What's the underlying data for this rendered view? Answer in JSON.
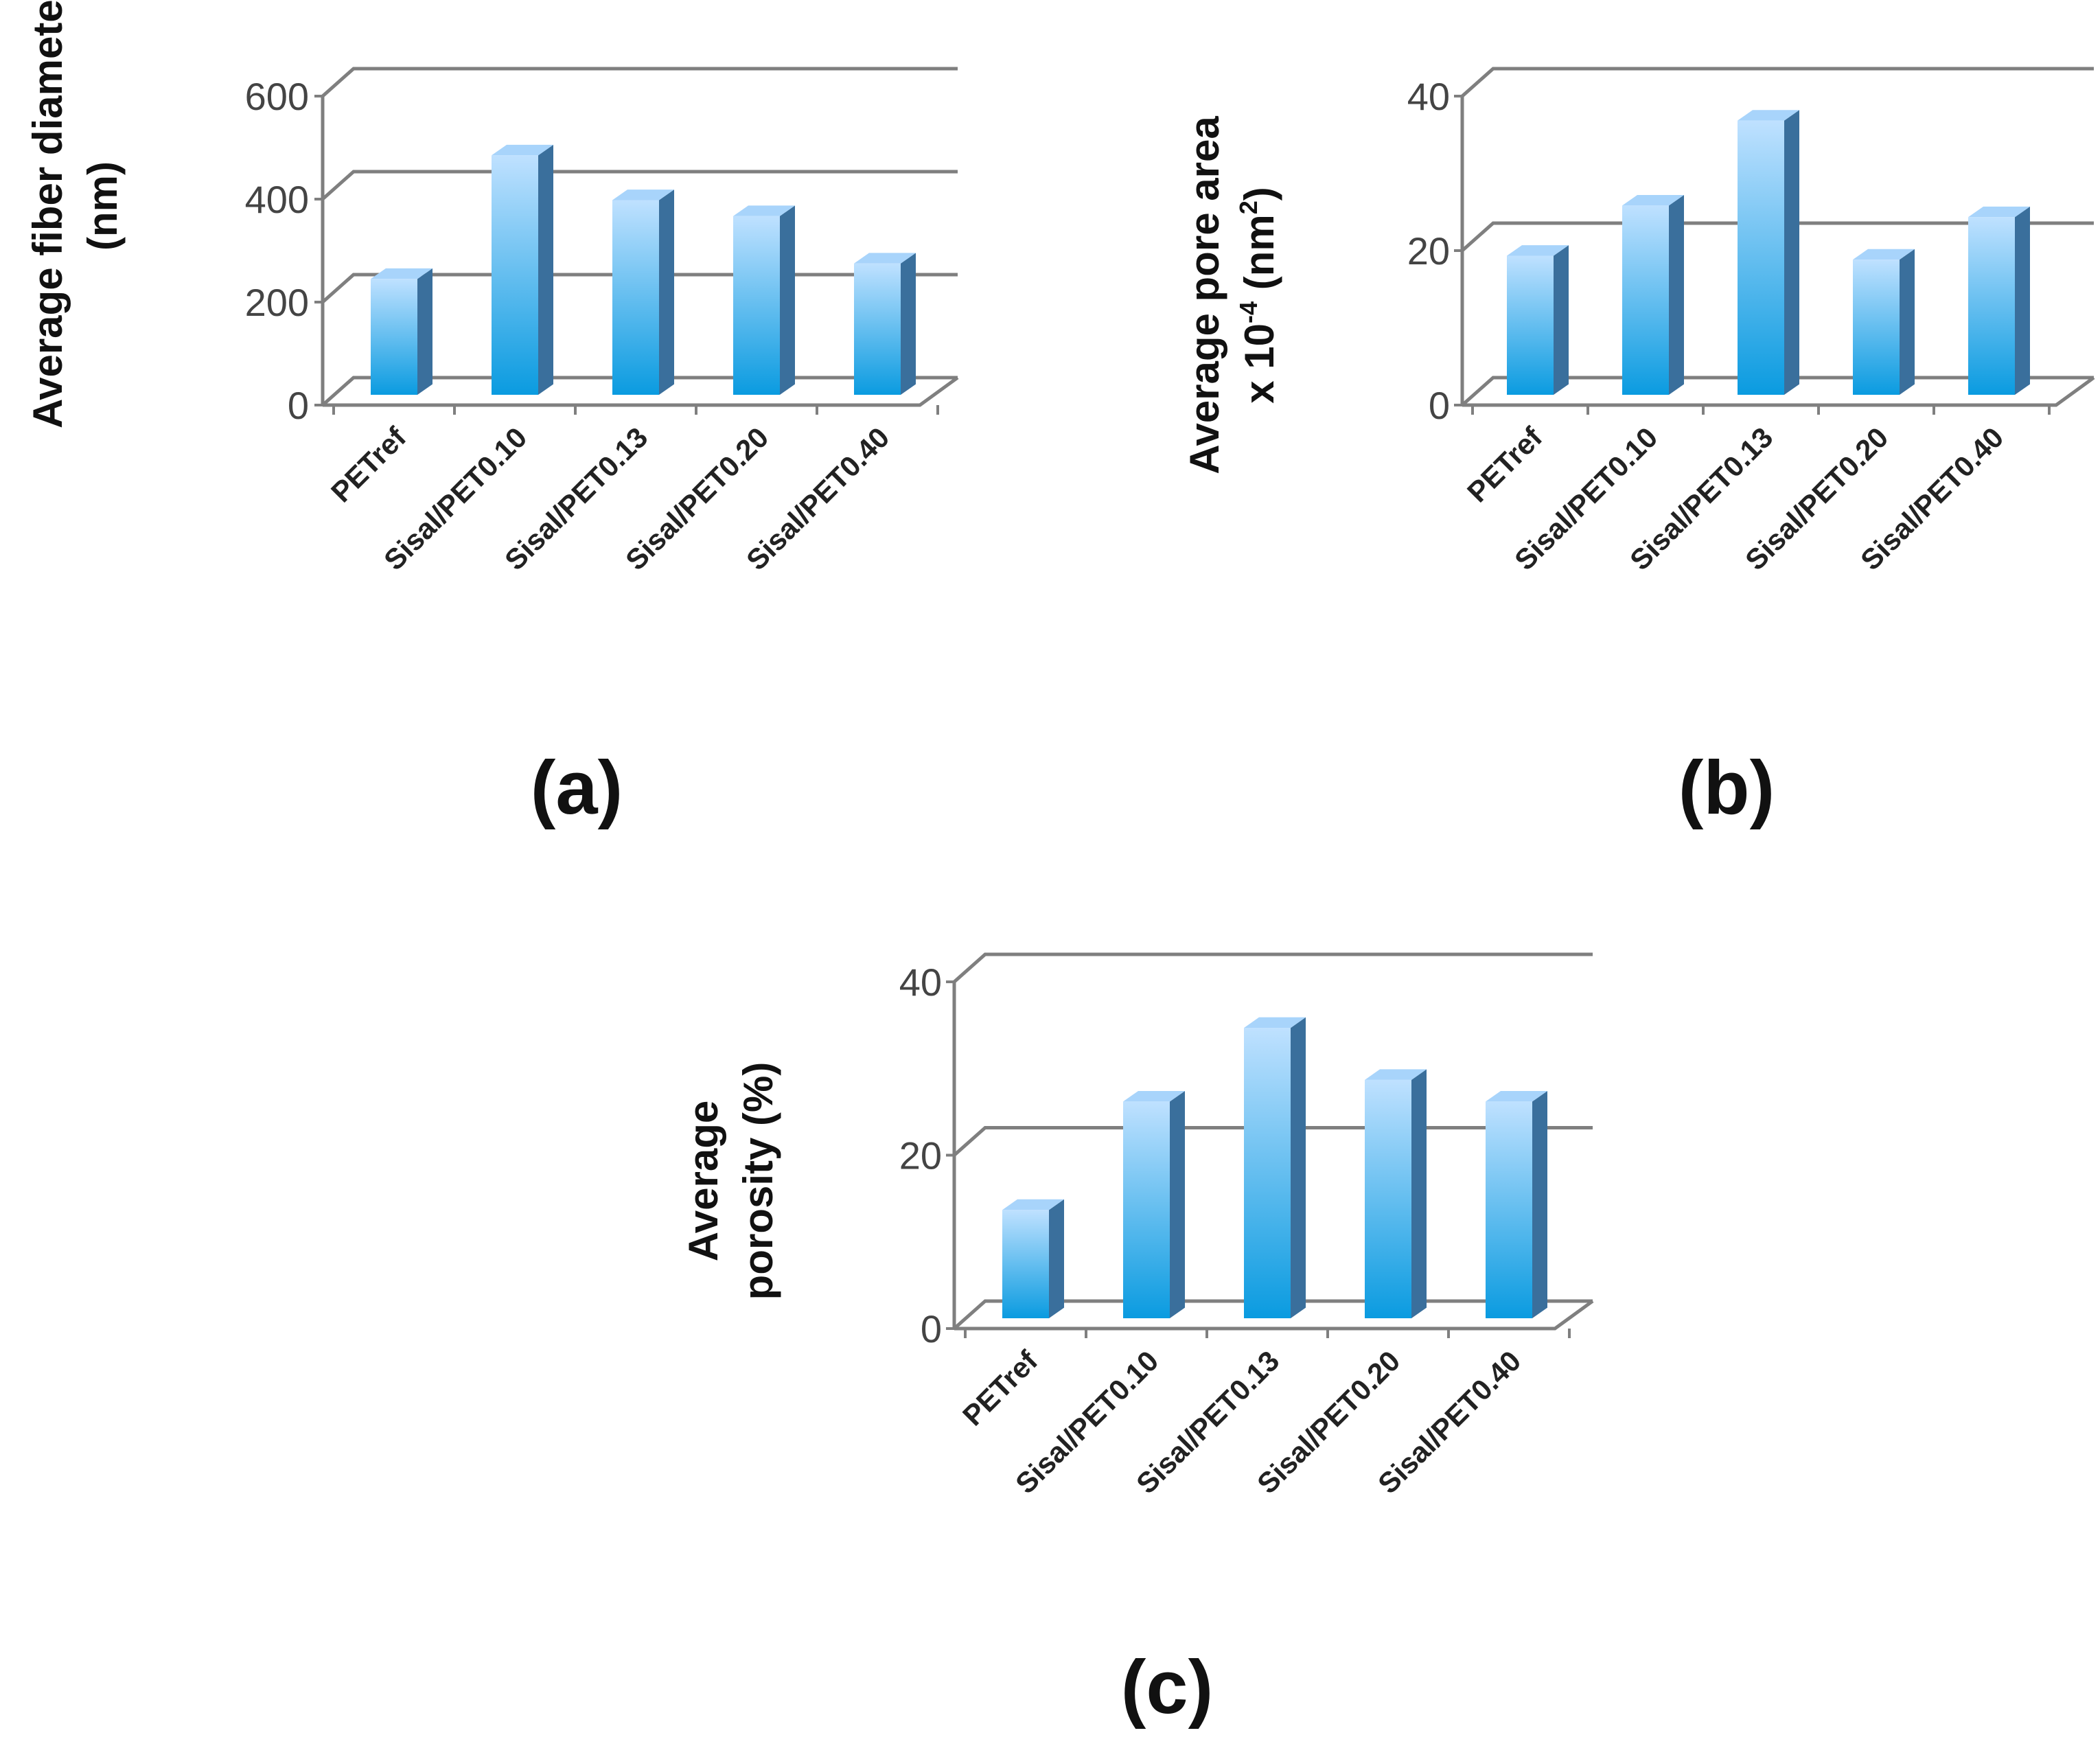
{
  "colors": {
    "bar_front_top": "#bfe1ff",
    "bar_front_bottom": "#0a9be0",
    "bar_side": "#3a6f9c",
    "bar_top": "#a8d4fb",
    "gridline": "#7f7f7f"
  },
  "chart_data": [
    {
      "type": "bar",
      "panel_label": "(a)",
      "ylabel_lines": [
        "Average fiber diameter",
        "(nm)"
      ],
      "categories": [
        "PETref",
        "Sisal/PET0.10",
        "Sisal/PET0.13",
        "Sisal/PET0.20",
        "Sisal/PET0.40"
      ],
      "values": [
        225,
        465,
        378,
        347,
        255
      ],
      "ylim": [
        0,
        600
      ],
      "yticks": [
        "0",
        "200",
        "400",
        "600"
      ],
      "grid": true
    },
    {
      "type": "bar",
      "panel_label": "(b)",
      "ylabel_line1": "Average pore area",
      "ylabel_line2": {
        "pre": "x 10",
        "sup1": "-4",
        "mid": " (nm",
        "sup2": "2",
        "post": ")"
      },
      "categories": [
        "PETref",
        "Sisal/PET0.10",
        "Sisal/PET0.13",
        "Sisal/PET0.20",
        "Sisal/PET0.40"
      ],
      "values": [
        18,
        24.5,
        35.5,
        17.5,
        23
      ],
      "ylim": [
        0,
        40
      ],
      "yticks": [
        "0",
        "20",
        "40"
      ],
      "grid": true
    },
    {
      "type": "bar",
      "panel_label": "(c)",
      "ylabel_lines": [
        "Average",
        "porosity (%)"
      ],
      "categories": [
        "PETref",
        "Sisal/PET0.10",
        "Sisal/PET0.13",
        "Sisal/PET0.20",
        "Sisal/PET0.40"
      ],
      "values": [
        12.5,
        25,
        33.5,
        27.5,
        25
      ],
      "ylim": [
        0,
        40
      ],
      "yticks": [
        "0",
        "20",
        "40"
      ],
      "grid": true
    }
  ]
}
